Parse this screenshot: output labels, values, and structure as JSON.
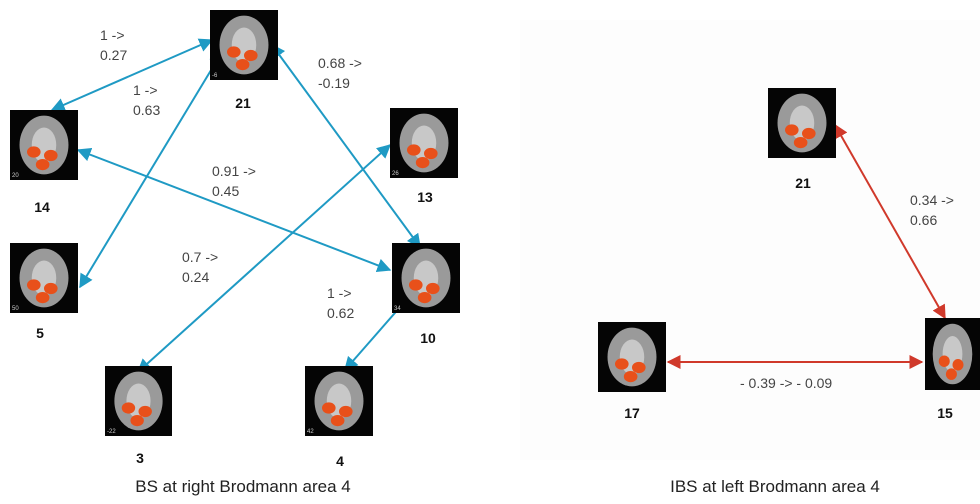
{
  "panels": [
    {
      "caption": "BS at right Brodmann area 4",
      "nodes": [
        {
          "label": "21",
          "slice": "-6"
        },
        {
          "label": "14",
          "slice": "20"
        },
        {
          "label": "13",
          "slice": "26"
        },
        {
          "label": "5",
          "slice": "50"
        },
        {
          "label": "10",
          "slice": "34"
        },
        {
          "label": "3",
          "slice": "-22"
        },
        {
          "label": "4",
          "slice": "42"
        }
      ],
      "edges": [
        {
          "label": [
            "1 ->",
            "0.27"
          ]
        },
        {
          "label": [
            "1 ->",
            "0.63"
          ]
        },
        {
          "label": [
            "0.68 ->",
            "-0.19"
          ]
        },
        {
          "label": [
            "0.91 ->",
            "0.45"
          ]
        },
        {
          "label": [
            "0.7 ->",
            "0.24"
          ]
        },
        {
          "label": [
            "1 ->",
            "0.62"
          ]
        }
      ]
    },
    {
      "caption": "IBS at left Brodmann area 4",
      "nodes": [
        {
          "label": "21"
        },
        {
          "label": "15"
        },
        {
          "label": "17"
        }
      ],
      "edges": [
        {
          "label": [
            "0.34 ->",
            "0.66"
          ]
        },
        {
          "label": [
            "- 0.39 -> - 0.09"
          ]
        }
      ]
    }
  ]
}
